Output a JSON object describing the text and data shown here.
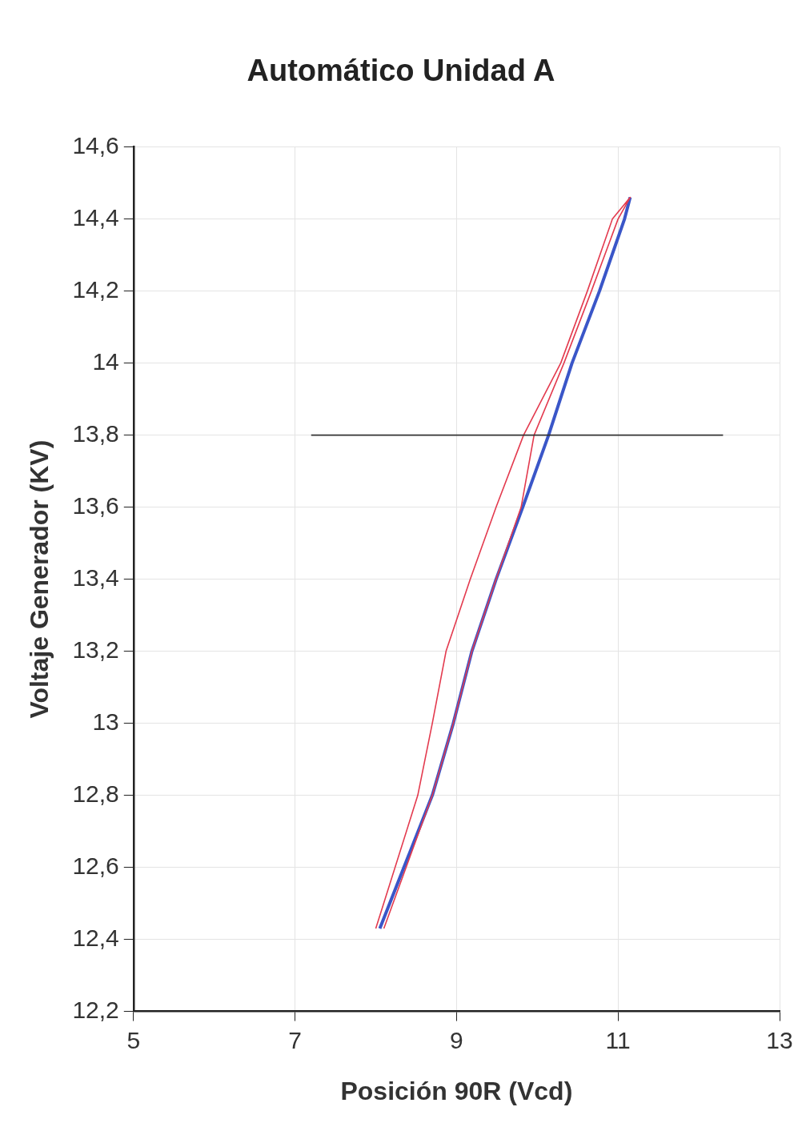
{
  "chart_data": {
    "type": "line",
    "title": "Automático Unidad A",
    "xlabel": "Posición 90R (Vcd)",
    "ylabel": "Voltaje Generador (KV)",
    "xlim": [
      5,
      13
    ],
    "xticks": [
      5,
      7,
      9,
      11,
      13
    ],
    "ylim": [
      12.2,
      14.6
    ],
    "yticks": [
      {
        "value": 12.2,
        "label": "12,2"
      },
      {
        "value": 12.4,
        "label": "12,4"
      },
      {
        "value": 12.6,
        "label": "12,6"
      },
      {
        "value": 12.8,
        "label": "12,8"
      },
      {
        "value": 13,
        "label": "13"
      },
      {
        "value": 13.2,
        "label": "13,2"
      },
      {
        "value": 13.4,
        "label": "13,4"
      },
      {
        "value": 13.6,
        "label": "13,6"
      },
      {
        "value": 13.8,
        "label": "13,8"
      },
      {
        "value": 14,
        "label": "14"
      },
      {
        "value": 14.2,
        "label": "14,2"
      },
      {
        "value": 14.4,
        "label": "14,4"
      },
      {
        "value": 14.6,
        "label": "14,6"
      }
    ],
    "grid": true,
    "marker": "none",
    "line_style": "solid",
    "series": [
      {
        "color": "#3a56c8",
        "x": [
          8.05,
          8.7,
          8.96,
          9.19,
          9.49,
          9.82,
          10.14,
          10.43,
          10.77,
          11.08,
          11.15
        ],
        "values": [
          12.43,
          12.8,
          13.0,
          13.2,
          13.4,
          13.6,
          13.8,
          14.0,
          14.2,
          14.4,
          14.46
        ]
      },
      {
        "color": "#e33a4e",
        "x": [
          8.0,
          8.52,
          8.7,
          8.87,
          9.17,
          9.49,
          9.83,
          10.29,
          10.62,
          10.93,
          11.15,
          11.0,
          10.67,
          10.33,
          9.96,
          9.8,
          9.49,
          9.19,
          8.96,
          8.7,
          8.1
        ],
        "values": [
          12.43,
          12.8,
          13.0,
          13.2,
          13.4,
          13.6,
          13.8,
          14.0,
          14.2,
          14.4,
          14.46,
          14.4,
          14.2,
          14.0,
          13.8,
          13.6,
          13.4,
          13.2,
          13.0,
          12.8,
          12.43
        ]
      },
      {
        "color": "#333333",
        "x": [
          7.2,
          12.3
        ],
        "values": [
          13.8,
          13.8
        ]
      }
    ]
  }
}
